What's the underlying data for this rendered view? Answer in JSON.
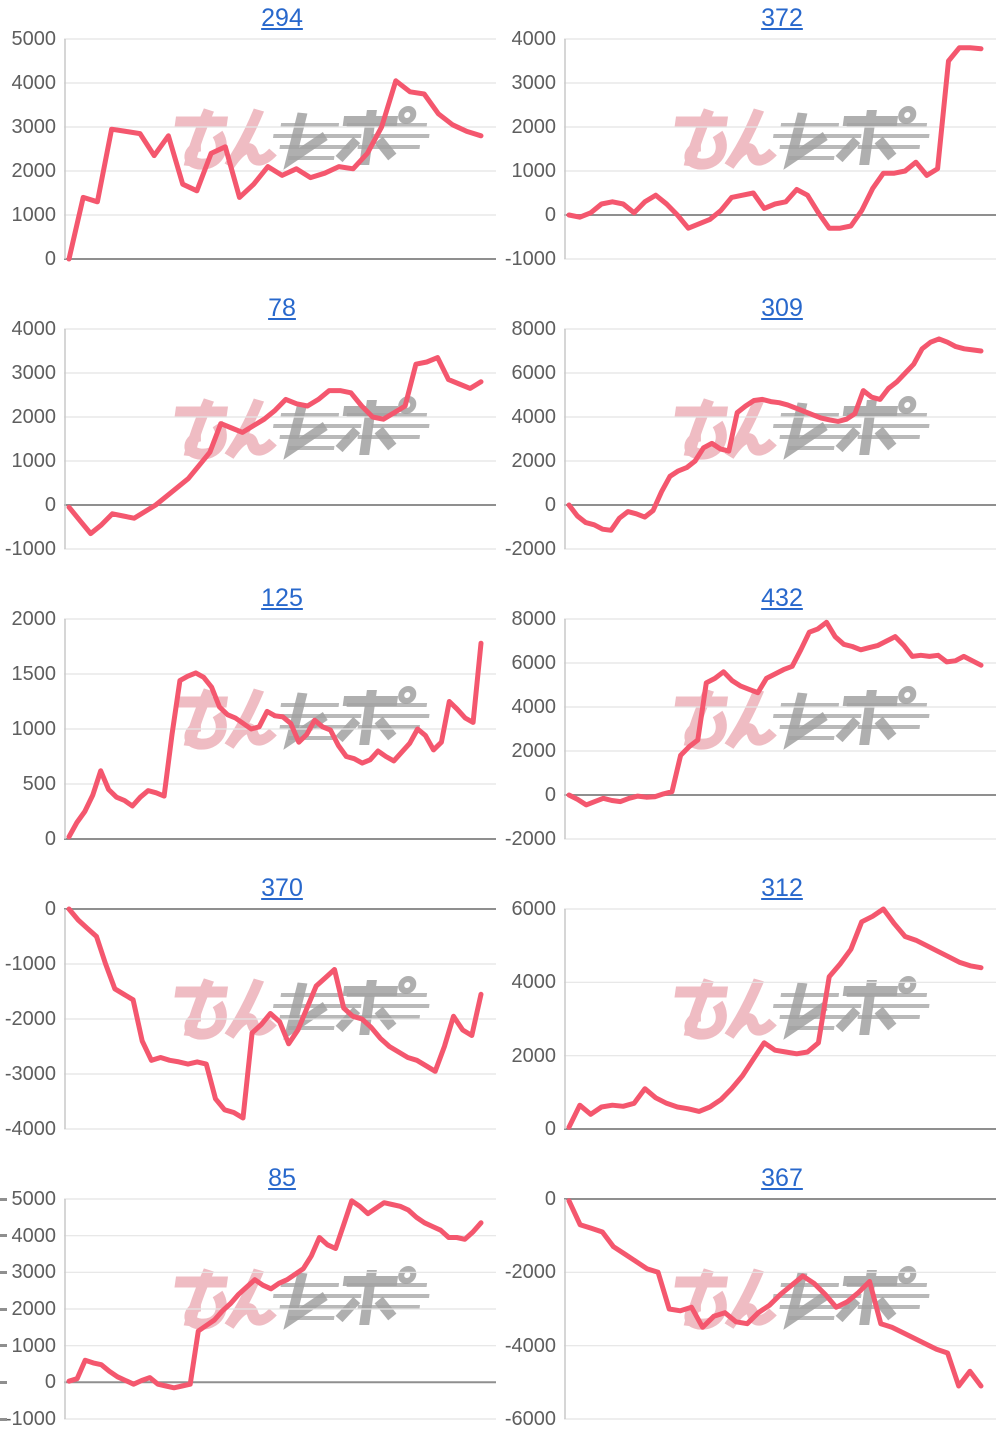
{
  "page": {
    "background_color": "#ffffff",
    "description": "Grid of 10 cumulative line-graph thumbnails (2 columns x 5 rows), each titled by a blue underlined machine-number link, with a pink/gray site watermark over every plot"
  },
  "style": {
    "line_color": "#f4576e",
    "grid_color": "#e4e4e4",
    "zero_line_color": "#8f8f8f",
    "axis_color": "#c9c9c9",
    "label_color": "#5e5e5e",
    "title_color": "#2868cc"
  },
  "watermark": {
    "text": "みんレポ",
    "part_pink": "みん",
    "part_gray": "レポ",
    "pink_color": "#eeb5bd",
    "gray_color": "#a2a2a2"
  },
  "layout_hints": {
    "columns": 2,
    "rows": 5,
    "x_axis_labels": "none",
    "legend": "none",
    "grid": "horizontal gridlines only, darker line at zero"
  },
  "chart_data": [
    {
      "type": "line",
      "title": "294",
      "xlabel": "",
      "ylabel": "",
      "ticks": [
        5000,
        4000,
        3000,
        2000,
        1000,
        0
      ],
      "ylim": [
        0,
        5000
      ],
      "edge_ticks": false,
      "values": [
        0,
        1400,
        1300,
        2950,
        2900,
        2850,
        2350,
        2800,
        1700,
        1550,
        2400,
        2550,
        1400,
        1700,
        2100,
        1900,
        2050,
        1850,
        1950,
        2100,
        2050,
        2400,
        3000,
        4050,
        3800,
        3750,
        3300,
        3050,
        2900,
        2800
      ]
    },
    {
      "type": "line",
      "title": "372",
      "xlabel": "",
      "ylabel": "",
      "ticks": [
        4000,
        3000,
        2000,
        1000,
        0,
        -1000
      ],
      "ylim": [
        -1000,
        4000
      ],
      "edge_ticks": false,
      "values": [
        0,
        -50,
        50,
        250,
        300,
        250,
        50,
        300,
        450,
        250,
        0,
        -300,
        -200,
        -100,
        100,
        400,
        450,
        500,
        150,
        250,
        300,
        580,
        450,
        50,
        -300,
        -300,
        -250,
        100,
        600,
        950,
        950,
        1000,
        1200,
        900,
        1050,
        3500,
        3800,
        3800,
        3780
      ]
    },
    {
      "type": "line",
      "title": "78",
      "xlabel": "",
      "ylabel": "",
      "ticks": [
        4000,
        3000,
        2000,
        1000,
        0,
        -1000
      ],
      "ylim": [
        -1000,
        4000
      ],
      "edge_ticks": false,
      "values": [
        -50,
        -350,
        -650,
        -450,
        -200,
        -250,
        -300,
        -150,
        0,
        200,
        400,
        600,
        900,
        1200,
        1850,
        1750,
        1650,
        1800,
        1950,
        2150,
        2400,
        2300,
        2250,
        2400,
        2600,
        2600,
        2550,
        2250,
        2000,
        1950,
        2100,
        2250,
        3200,
        3250,
        3350,
        2850,
        2750,
        2650,
        2800
      ]
    },
    {
      "type": "line",
      "title": "309",
      "xlabel": "",
      "ylabel": "",
      "ticks": [
        8000,
        6000,
        4000,
        2000,
        0,
        -2000
      ],
      "ylim": [
        -2000,
        8000
      ],
      "edge_ticks": false,
      "values": [
        0,
        -500,
        -800,
        -900,
        -1100,
        -1150,
        -600,
        -300,
        -400,
        -550,
        -250,
        600,
        1300,
        1550,
        1700,
        2000,
        2600,
        2800,
        2550,
        2450,
        4200,
        4500,
        4750,
        4800,
        4700,
        4650,
        4550,
        4400,
        4250,
        4100,
        3950,
        3870,
        3800,
        3900,
        4150,
        5200,
        4900,
        4800,
        5300,
        5600,
        6000,
        6400,
        7100,
        7400,
        7550,
        7400,
        7200,
        7100,
        7050,
        7000
      ]
    },
    {
      "type": "line",
      "title": "125",
      "xlabel": "",
      "ylabel": "",
      "ticks": [
        2000,
        1500,
        1000,
        500,
        0
      ],
      "ylim": [
        0,
        2000
      ],
      "edge_ticks": false,
      "values": [
        20,
        150,
        250,
        400,
        620,
        450,
        380,
        350,
        300,
        380,
        440,
        420,
        390,
        950,
        1440,
        1480,
        1510,
        1470,
        1380,
        1200,
        1130,
        1100,
        1050,
        1000,
        1020,
        1160,
        1120,
        1110,
        1050,
        880,
        950,
        1080,
        1020,
        990,
        850,
        750,
        730,
        690,
        720,
        800,
        750,
        710,
        790,
        870,
        1000,
        940,
        810,
        880,
        1250,
        1180,
        1100,
        1060,
        1780
      ]
    },
    {
      "type": "line",
      "title": "432",
      "xlabel": "",
      "ylabel": "",
      "ticks": [
        8000,
        6000,
        4000,
        2000,
        0,
        -2000
      ],
      "ylim": [
        -2000,
        8000
      ],
      "edge_ticks": false,
      "values": [
        0,
        -200,
        -450,
        -300,
        -150,
        -250,
        -300,
        -150,
        -50,
        -100,
        -80,
        50,
        150,
        1800,
        2200,
        2500,
        5100,
        5300,
        5600,
        5200,
        4950,
        4800,
        4650,
        5300,
        5500,
        5700,
        5850,
        6600,
        7400,
        7550,
        7850,
        7200,
        6850,
        6750,
        6600,
        6700,
        6800,
        7000,
        7200,
        6800,
        6300,
        6350,
        6300,
        6350,
        6050,
        6100,
        6300,
        6100,
        5900
      ]
    },
    {
      "type": "line",
      "title": "370",
      "xlabel": "",
      "ylabel": "",
      "ticks": [
        0,
        -1000,
        -2000,
        -3000,
        -4000
      ],
      "ylim": [
        -4000,
        0
      ],
      "edge_ticks": false,
      "values": [
        0,
        -200,
        -350,
        -500,
        -1000,
        -1450,
        -1550,
        -1650,
        -2400,
        -2750,
        -2700,
        -2750,
        -2780,
        -2820,
        -2780,
        -2820,
        -3450,
        -3650,
        -3700,
        -3800,
        -2250,
        -2100,
        -1900,
        -2050,
        -2450,
        -2200,
        -1800,
        -1400,
        -1250,
        -1100,
        -1800,
        -1950,
        -2000,
        -2150,
        -2350,
        -2500,
        -2600,
        -2700,
        -2750,
        -2850,
        -2950,
        -2500,
        -1950,
        -2200,
        -2300,
        -1550
      ]
    },
    {
      "type": "line",
      "title": "312",
      "xlabel": "",
      "ylabel": "",
      "ticks": [
        6000,
        4000,
        2000,
        0
      ],
      "ylim": [
        0,
        6000
      ],
      "edge_ticks": false,
      "values": [
        50,
        650,
        400,
        600,
        650,
        620,
        700,
        1100,
        850,
        700,
        600,
        550,
        480,
        600,
        800,
        1100,
        1450,
        1900,
        2350,
        2150,
        2100,
        2050,
        2100,
        2350,
        4150,
        4500,
        4900,
        5650,
        5800,
        6000,
        5600,
        5250,
        5150,
        5000,
        4850,
        4700,
        4550,
        4450,
        4400
      ]
    },
    {
      "type": "line",
      "title": "85",
      "xlabel": "",
      "ylabel": "",
      "ticks": [
        5000,
        4000,
        3000,
        2000,
        1000,
        0,
        -1000
      ],
      "ylim": [
        -1000,
        5000
      ],
      "edge_ticks": true,
      "values": [
        30,
        100,
        600,
        530,
        480,
        300,
        150,
        50,
        -50,
        50,
        130,
        -50,
        -100,
        -150,
        -100,
        -50,
        1400,
        1550,
        1700,
        1950,
        2150,
        2400,
        2600,
        2800,
        2650,
        2550,
        2700,
        2800,
        2950,
        3100,
        3450,
        3950,
        3750,
        3650,
        4300,
        4950,
        4800,
        4600,
        4750,
        4900,
        4850,
        4800,
        4700,
        4500,
        4350,
        4250,
        4150,
        3950,
        3950,
        3900,
        4100,
        4350
      ]
    },
    {
      "type": "line",
      "title": "367",
      "xlabel": "",
      "ylabel": "",
      "ticks": [
        0,
        -2000,
        -4000,
        -6000
      ],
      "ylim": [
        -6000,
        0
      ],
      "edge_ticks": false,
      "values": [
        -50,
        -700,
        -800,
        -900,
        -1300,
        -1500,
        -1700,
        -1900,
        -2000,
        -3000,
        -3050,
        -2950,
        -3500,
        -3200,
        -3100,
        -3350,
        -3400,
        -3100,
        -2900,
        -2600,
        -2350,
        -2100,
        -2300,
        -2600,
        -2950,
        -2800,
        -2550,
        -2250,
        -3400,
        -3500,
        -3650,
        -3800,
        -3950,
        -4100,
        -4200,
        -5100,
        -4700,
        -5100
      ]
    }
  ]
}
